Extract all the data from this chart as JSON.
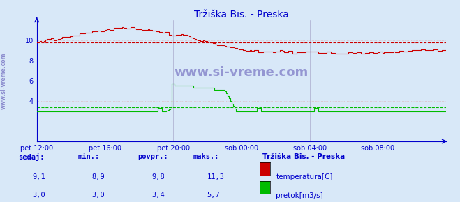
{
  "title": "Tržiška Bis. - Preska",
  "title_color": "#0000cc",
  "bg_color": "#d8e8f8",
  "plot_bg_color": "#d8e8f8",
  "grid_major_color": "#aaaacc",
  "grid_minor_color": "#ddaaaa",
  "xlim": [
    0,
    288
  ],
  "ylim": [
    0,
    12
  ],
  "yticks": [
    4,
    6,
    8,
    10
  ],
  "xtick_labels": [
    "pet 12:00",
    "pet 16:00",
    "pet 20:00",
    "sob 00:00",
    "sob 04:00",
    "sob 08:00"
  ],
  "xtick_positions": [
    0,
    48,
    96,
    144,
    192,
    240
  ],
  "temp_color": "#cc0000",
  "flow_color": "#00bb00",
  "avg_temp": 9.8,
  "avg_flow": 3.4,
  "watermark": "www.si-vreme.com",
  "watermark_color": "#8888cc",
  "sidebar_text": "www.si-vreme.com",
  "footer_labels": [
    "sedaj:",
    "min.:",
    "povpr.:",
    "maks.:"
  ],
  "footer_temp": [
    "9,1",
    "8,9",
    "9,8",
    "11,3"
  ],
  "footer_flow": [
    "3,0",
    "3,0",
    "3,4",
    "5,7"
  ],
  "legend_title": "Tržiška Bis. - Preska",
  "legend_temp": "temperatura[C]",
  "legend_flow": "pretok[m3/s]",
  "axis_color": "#0000cc",
  "tick_color": "#0000cc",
  "footer_color": "#0000cc",
  "spine_color": "#0000cc"
}
